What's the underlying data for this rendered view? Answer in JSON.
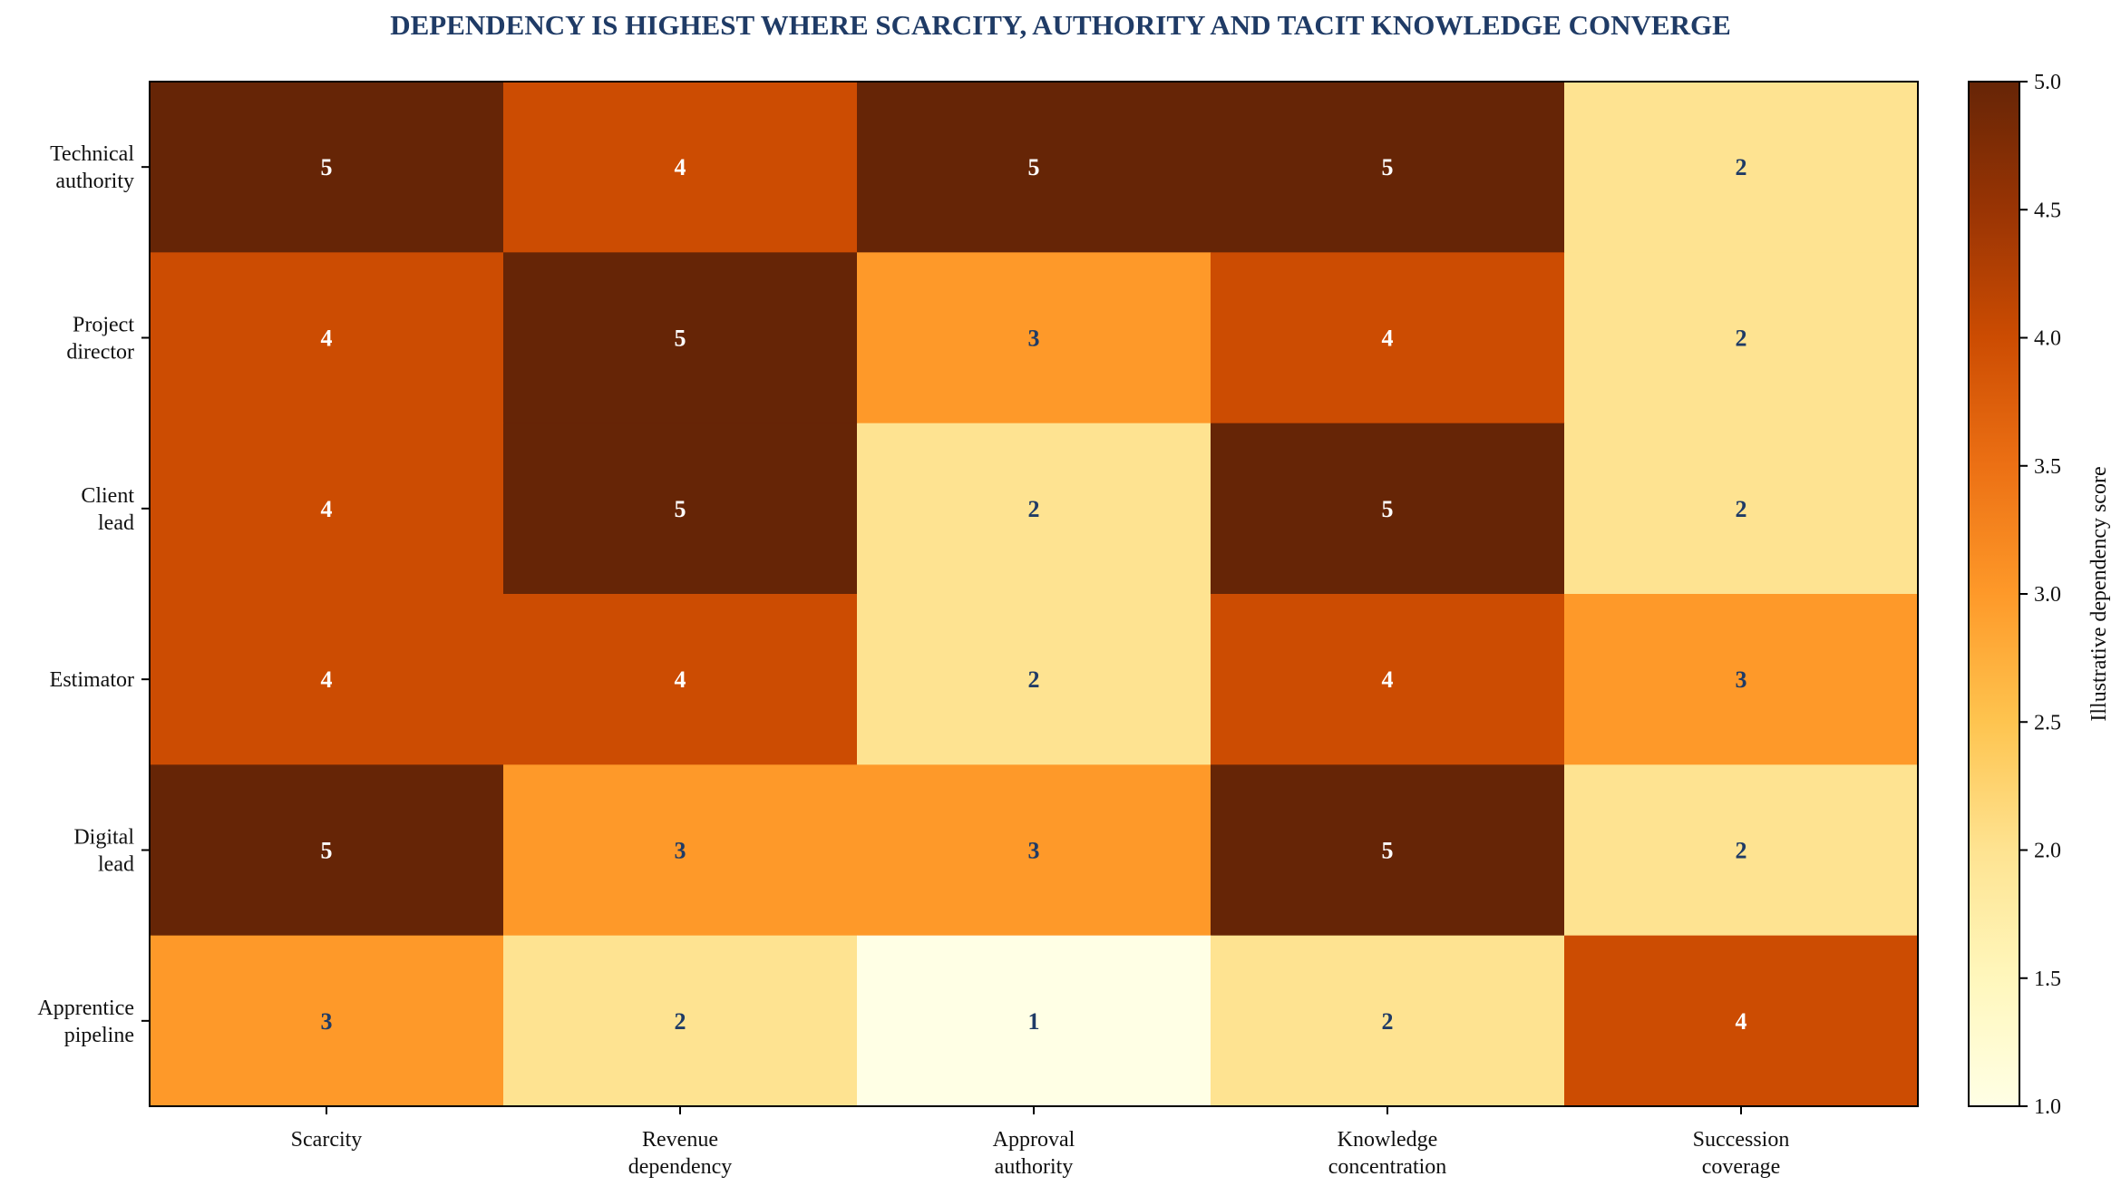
{
  "chart_data": {
    "type": "heatmap",
    "title": "DEPENDENCY IS HIGHEST WHERE SCARCITY, AUTHORITY AND TACIT KNOWLEDGE CONVERGE",
    "rows": [
      [
        "Technical",
        "authority"
      ],
      [
        "Project",
        "director"
      ],
      [
        "Client",
        "lead"
      ],
      [
        "Estimator"
      ],
      [
        "Digital",
        "lead"
      ],
      [
        "Apprentice",
        "pipeline"
      ]
    ],
    "columns": [
      [
        "Scarcity"
      ],
      [
        "Revenue",
        "dependency"
      ],
      [
        "Approval",
        "authority"
      ],
      [
        "Knowledge",
        "concentration"
      ],
      [
        "Succession",
        "coverage"
      ]
    ],
    "values": [
      [
        5,
        4,
        5,
        5,
        2
      ],
      [
        4,
        5,
        3,
        4,
        2
      ],
      [
        4,
        5,
        2,
        5,
        2
      ],
      [
        4,
        4,
        2,
        4,
        3
      ],
      [
        5,
        3,
        3,
        5,
        2
      ],
      [
        3,
        2,
        1,
        2,
        4
      ]
    ],
    "colorbar": {
      "label": "Illustrative dependency score",
      "range": [
        1.0,
        5.0
      ],
      "ticks": [
        "1.0",
        "1.5",
        "2.0",
        "2.5",
        "3.0",
        "3.5",
        "4.0",
        "4.5",
        "5.0"
      ]
    },
    "colors": {
      "1": "#ffffe5",
      "2": "#fee391",
      "3": "#fe9929",
      "4": "#cc4c02",
      "5": "#662506",
      "label_dark": "#1f3b66",
      "label_light": "#ffffff"
    }
  }
}
